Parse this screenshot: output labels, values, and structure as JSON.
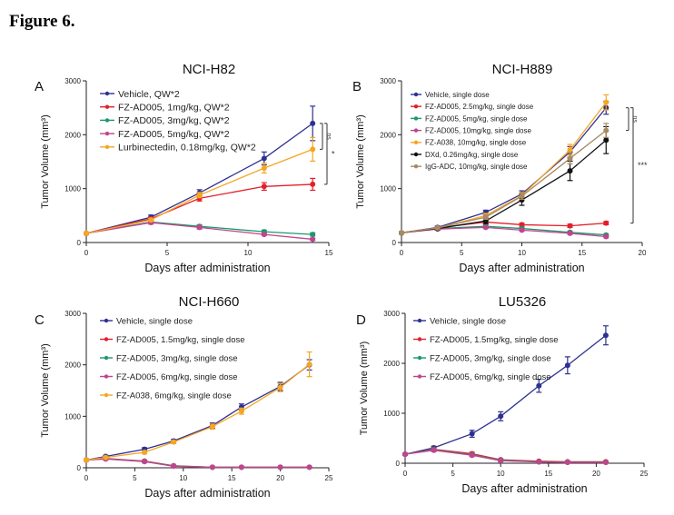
{
  "figure_title": "Figure 6.",
  "chart_data": [
    {
      "type": "line",
      "panel_letter": "A",
      "title": "NCI-H82",
      "xlabel": "Days after administration",
      "ylabel": "Tumor Volume (mm³)",
      "xlim": [
        0,
        15
      ],
      "ylim": [
        0,
        3000
      ],
      "xticks": [
        0,
        5,
        10,
        15
      ],
      "yticks": [
        0,
        1000,
        2000,
        3000
      ],
      "series": [
        {
          "name": "Vehicle, QW*2",
          "color": "#2e3192",
          "x": [
            0,
            4,
            7,
            11,
            14
          ],
          "y": [
            170,
            470,
            920,
            1560,
            2210
          ],
          "err": [
            20,
            40,
            60,
            120,
            320
          ]
        },
        {
          "name": "FZ-AD005, 1mg/kg, QW*2",
          "color": "#e3202a",
          "x": [
            0,
            4,
            7,
            11,
            14
          ],
          "y": [
            170,
            440,
            820,
            1040,
            1080
          ],
          "err": [
            20,
            30,
            50,
            70,
            110
          ]
        },
        {
          "name": "FZ-AD005, 3mg/kg, QW*2",
          "color": "#1a9a6a",
          "x": [
            0,
            4,
            7,
            11,
            14
          ],
          "y": [
            170,
            380,
            300,
            200,
            150
          ],
          "err": [
            20,
            30,
            30,
            30,
            30
          ]
        },
        {
          "name": "FZ-AD005, 5mg/kg, QW*2",
          "color": "#c0448f",
          "x": [
            0,
            4,
            7,
            11,
            14
          ],
          "y": [
            170,
            370,
            280,
            150,
            60
          ],
          "err": [
            20,
            30,
            30,
            20,
            20
          ]
        },
        {
          "name": "Lurbinectedin, 0.18mg/kg, QW*2",
          "color": "#f5a623",
          "x": [
            0,
            4,
            7,
            11,
            14
          ],
          "y": [
            170,
            420,
            880,
            1380,
            1730
          ],
          "err": [
            20,
            30,
            50,
            90,
            220
          ]
        }
      ],
      "annotations": [
        "ns",
        "*"
      ]
    },
    {
      "type": "line",
      "panel_letter": "B",
      "title": "NCI-H889",
      "xlabel": "Days after administration",
      "ylabel": "Tumor Volume (mm³)",
      "xlim": [
        0,
        20
      ],
      "ylim": [
        0,
        3000
      ],
      "xticks": [
        0,
        5,
        10,
        15,
        20
      ],
      "yticks": [
        0,
        1000,
        2000,
        3000
      ],
      "series": [
        {
          "name": "Vehicle, single dose",
          "color": "#2e3192",
          "x": [
            0,
            3,
            7,
            10,
            14,
            17
          ],
          "y": [
            180,
            280,
            560,
            900,
            1680,
            2500
          ],
          "err": [
            20,
            30,
            40,
            60,
            100,
            120
          ]
        },
        {
          "name": "FZ-AD005, 2.5mg/kg, single dose",
          "color": "#e3202a",
          "x": [
            0,
            3,
            7,
            10,
            14,
            17
          ],
          "y": [
            180,
            270,
            380,
            330,
            310,
            360
          ],
          "err": [
            20,
            20,
            30,
            30,
            30,
            30
          ]
        },
        {
          "name": "FZ-AD005, 5mg/kg, single dose",
          "color": "#1a9a6a",
          "x": [
            0,
            3,
            7,
            10,
            14,
            17
          ],
          "y": [
            180,
            260,
            300,
            260,
            190,
            140
          ],
          "err": [
            20,
            20,
            30,
            20,
            20,
            20
          ]
        },
        {
          "name": "FZ-AD005, 10mg/kg, single dose",
          "color": "#c0448f",
          "x": [
            0,
            3,
            7,
            10,
            14,
            17
          ],
          "y": [
            180,
            250,
            280,
            230,
            170,
            110
          ],
          "err": [
            20,
            20,
            20,
            20,
            20,
            20
          ]
        },
        {
          "name": "FZ-A038, 10mg/kg, single dose",
          "color": "#f5a623",
          "x": [
            0,
            3,
            7,
            10,
            14,
            17
          ],
          "y": [
            180,
            270,
            500,
            870,
            1720,
            2600
          ],
          "err": [
            20,
            30,
            40,
            60,
            100,
            140
          ]
        },
        {
          "name": "DXd, 0.26mg/kg, single dose",
          "color": "#111111",
          "x": [
            0,
            3,
            7,
            10,
            14,
            17
          ],
          "y": [
            180,
            260,
            400,
            790,
            1330,
            1900
          ],
          "err": [
            20,
            30,
            50,
            100,
            180,
            250
          ]
        },
        {
          "name": "IgG-ADC, 10mg/kg, single dose",
          "color": "#a68a64",
          "x": [
            0,
            3,
            7,
            10,
            14,
            17
          ],
          "y": [
            180,
            270,
            470,
            860,
            1560,
            2080
          ],
          "err": [
            20,
            30,
            40,
            60,
            100,
            130
          ]
        }
      ],
      "annotations": [
        "ns",
        "***"
      ]
    },
    {
      "type": "line",
      "panel_letter": "C",
      "title": "NCI-H660",
      "xlabel": "Days after administration",
      "ylabel": "Tumor Volume (mm³)",
      "xlim": [
        0,
        25
      ],
      "ylim": [
        0,
        3000
      ],
      "xticks": [
        0,
        5,
        10,
        15,
        20,
        25
      ],
      "yticks": [
        0,
        1000,
        2000,
        3000
      ],
      "series": [
        {
          "name": "Vehicle, single dose",
          "color": "#2e3192",
          "x": [
            0,
            2,
            6,
            9,
            13,
            16,
            20,
            23
          ],
          "y": [
            150,
            220,
            360,
            520,
            820,
            1180,
            1580,
            2000
          ],
          "err": [
            20,
            20,
            30,
            30,
            50,
            60,
            80,
            100
          ]
        },
        {
          "name": "FZ-AD005, 1.5mg/kg, single dose",
          "color": "#e3202a",
          "x": [
            0,
            2,
            6,
            9,
            13,
            16,
            20,
            23
          ],
          "y": [
            150,
            180,
            130,
            40,
            10,
            10,
            10,
            10
          ],
          "err": [
            20,
            20,
            20,
            10,
            5,
            5,
            5,
            5
          ]
        },
        {
          "name": "FZ-AD005, 3mg/kg, single dose",
          "color": "#1a9a6a",
          "x": [
            0,
            2,
            6,
            9,
            13,
            16,
            20,
            23
          ],
          "y": [
            150,
            175,
            125,
            35,
            10,
            10,
            10,
            10
          ],
          "err": [
            20,
            20,
            20,
            10,
            5,
            5,
            5,
            5
          ]
        },
        {
          "name": "FZ-AD005, 6mg/kg, single dose",
          "color": "#c0448f",
          "x": [
            0,
            2,
            6,
            9,
            13,
            16,
            20,
            23
          ],
          "y": [
            150,
            170,
            120,
            30,
            10,
            10,
            10,
            10
          ],
          "err": [
            20,
            20,
            20,
            10,
            5,
            5,
            5,
            5
          ]
        },
        {
          "name": "FZ-A038, 6mg/kg, single dose",
          "color": "#f5a623",
          "x": [
            0,
            2,
            6,
            9,
            13,
            16,
            20,
            23
          ],
          "y": [
            150,
            200,
            300,
            500,
            800,
            1100,
            1560,
            2010
          ],
          "err": [
            20,
            20,
            30,
            30,
            50,
            60,
            80,
            240
          ]
        }
      ],
      "annotations": []
    },
    {
      "type": "line",
      "panel_letter": "D",
      "title": "LU5326",
      "xlabel": "Days after administration",
      "ylabel": "Tumor Volume (mm³)",
      "xlim": [
        0,
        25
      ],
      "ylim": [
        0,
        3000
      ],
      "xticks": [
        0,
        5,
        10,
        15,
        20,
        25
      ],
      "yticks": [
        0,
        1000,
        2000,
        3000
      ],
      "series": [
        {
          "name": "Vehicle, single dose",
          "color": "#2e3192",
          "x": [
            0,
            3,
            7,
            10,
            14,
            17,
            21
          ],
          "y": [
            180,
            310,
            590,
            940,
            1550,
            1960,
            2560
          ],
          "err": [
            20,
            30,
            70,
            90,
            130,
            170,
            190
          ]
        },
        {
          "name": "FZ-AD005, 1.5mg/kg, single dose",
          "color": "#e3202a",
          "x": [
            0,
            3,
            7,
            10,
            14,
            17,
            21
          ],
          "y": [
            180,
            280,
            190,
            70,
            40,
            30,
            30
          ],
          "err": [
            20,
            30,
            30,
            20,
            10,
            10,
            10
          ]
        },
        {
          "name": "FZ-AD005, 3mg/kg, single dose",
          "color": "#1a9a6a",
          "x": [
            0,
            3,
            7,
            10,
            14,
            17,
            21
          ],
          "y": [
            180,
            270,
            170,
            60,
            30,
            20,
            20
          ],
          "err": [
            20,
            30,
            30,
            20,
            10,
            10,
            10
          ]
        },
        {
          "name": "FZ-AD005, 6mg/kg, single dose",
          "color": "#c0448f",
          "x": [
            0,
            3,
            7,
            10,
            14,
            17,
            21
          ],
          "y": [
            180,
            260,
            160,
            50,
            25,
            15,
            15
          ],
          "err": [
            20,
            30,
            30,
            20,
            10,
            10,
            10
          ]
        }
      ],
      "annotations": []
    }
  ]
}
